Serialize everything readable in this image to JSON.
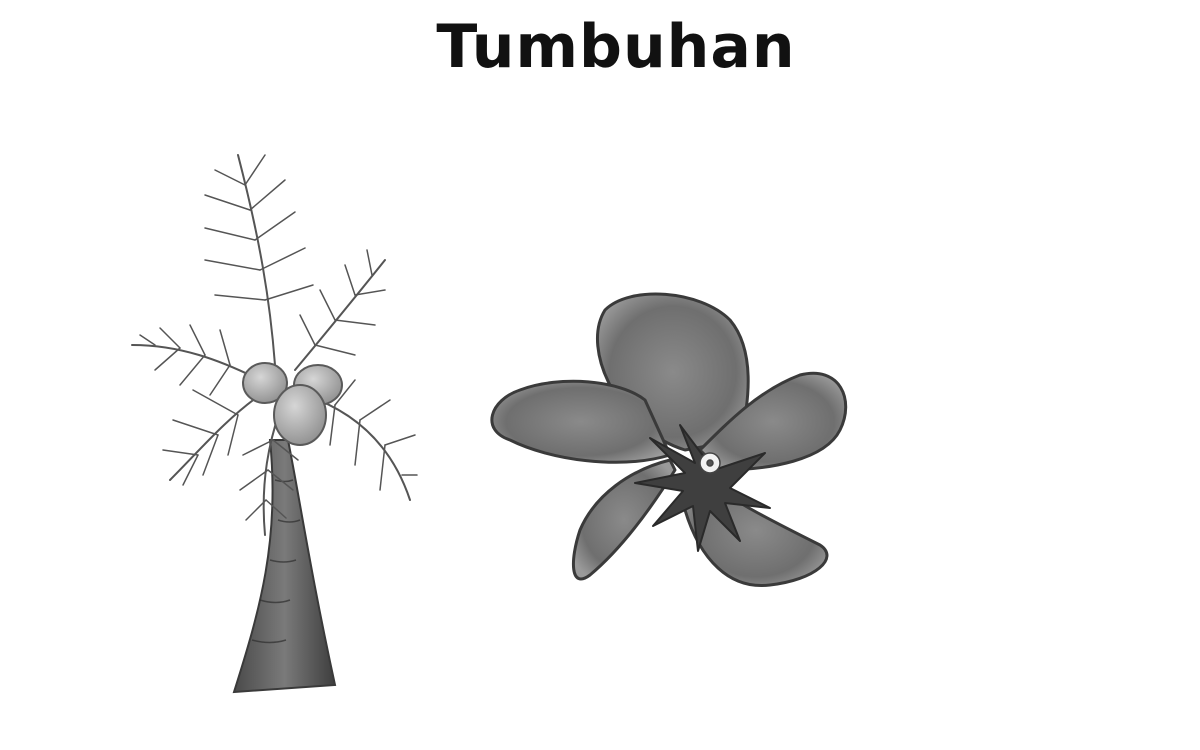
{
  "title": "Tumbuhan",
  "illustrations": [
    {
      "subject": "coconut-palm"
    },
    {
      "subject": "hibiscus-flower"
    }
  ]
}
